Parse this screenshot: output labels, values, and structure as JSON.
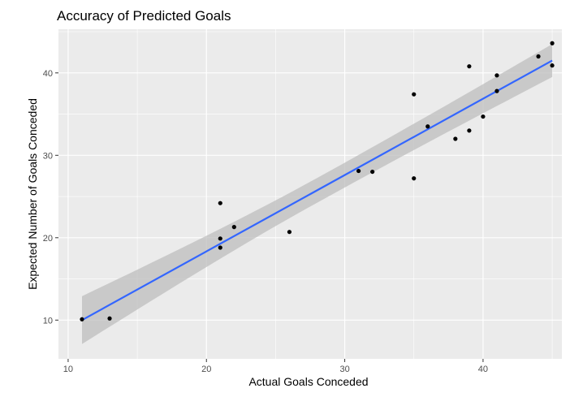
{
  "chart_data": {
    "type": "scatter",
    "title": "Accuracy of Predicted Goals",
    "xlabel": "Actual Goals Conceded",
    "ylabel": "Expected Number of Goals Conceded",
    "xlim": [
      9.3,
      45.7
    ],
    "ylim": [
      5.3,
      45.3
    ],
    "x_ticks": [
      10,
      20,
      30,
      40
    ],
    "y_ticks": [
      10,
      20,
      30,
      40
    ],
    "grid": true,
    "legend": "none",
    "colors": {
      "panel_background": "#ebebeb",
      "grid": "#ffffff",
      "points": "#000000",
      "fit_line": "#3366ff",
      "confidence_band": "#bdbdbd"
    },
    "points": [
      {
        "x": 11,
        "y": 10.1
      },
      {
        "x": 13,
        "y": 10.2
      },
      {
        "x": 21,
        "y": 24.2
      },
      {
        "x": 21,
        "y": 19.9
      },
      {
        "x": 21,
        "y": 18.8
      },
      {
        "x": 22,
        "y": 21.3
      },
      {
        "x": 26,
        "y": 20.7
      },
      {
        "x": 31,
        "y": 28.1
      },
      {
        "x": 32,
        "y": 28.0
      },
      {
        "x": 35,
        "y": 37.4
      },
      {
        "x": 35,
        "y": 27.2
      },
      {
        "x": 36,
        "y": 33.5
      },
      {
        "x": 38,
        "y": 32.0
      },
      {
        "x": 39,
        "y": 40.8
      },
      {
        "x": 39,
        "y": 33.0
      },
      {
        "x": 40,
        "y": 34.7
      },
      {
        "x": 41,
        "y": 39.7
      },
      {
        "x": 41,
        "y": 37.8
      },
      {
        "x": 44,
        "y": 42.0
      },
      {
        "x": 45,
        "y": 43.6
      },
      {
        "x": 45,
        "y": 40.9
      }
    ],
    "fit": {
      "method": "linear",
      "x_range": [
        11,
        45
      ],
      "y_at_x_min": 10.0,
      "y_at_x_max": 41.5,
      "band_at_x_min": [
        7.1,
        12.9
      ],
      "band_at_x_max": [
        39.5,
        43.5
      ]
    }
  }
}
